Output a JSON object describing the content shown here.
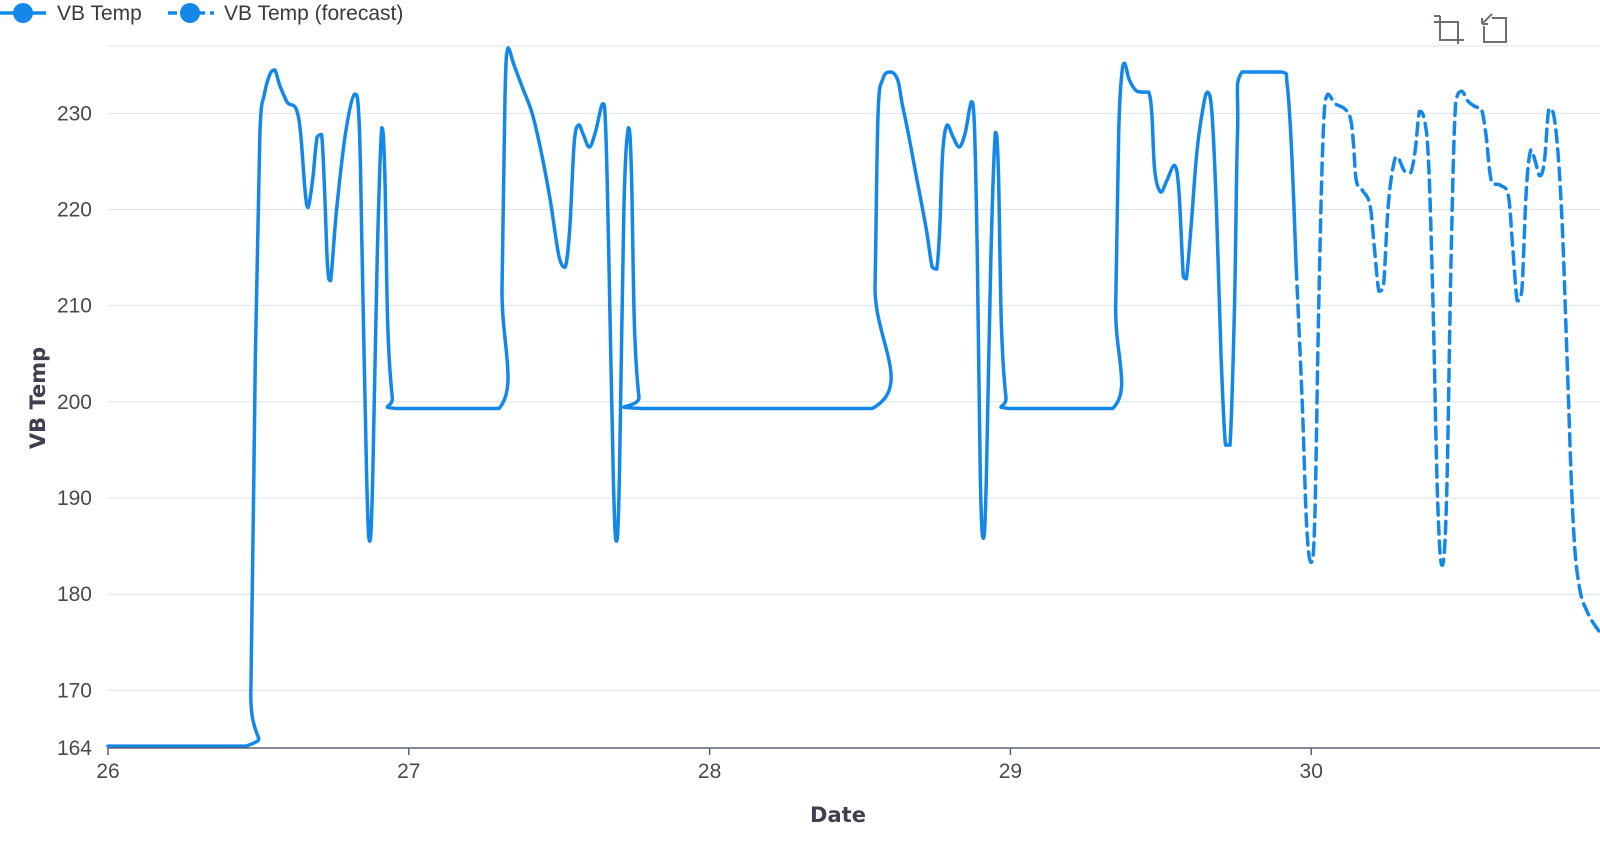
{
  "colors": {
    "series": "#1488e8",
    "grid": "#dde4ee",
    "axis": "#5b6475",
    "text": "#4a4a4a",
    "toolbar_icon": "#6b6f78"
  },
  "toolbar": {
    "zoom_icon": "zoom-select-icon",
    "restore_icon": "zoom-reset-icon"
  },
  "chart_data": {
    "type": "line",
    "xlabel": "Date",
    "ylabel": "VB Temp",
    "xlim": [
      26,
      30.96
    ],
    "ylim": [
      164,
      237
    ],
    "grid": true,
    "legend_position": "top-left",
    "x_ticks": [
      "26",
      "27",
      "28",
      "29",
      "30"
    ],
    "y_ticks": [
      "164",
      "170",
      "180",
      "190",
      "200",
      "210",
      "220",
      "230"
    ],
    "series": [
      {
        "name": "VB Temp",
        "style": "solid",
        "points": [
          [
            26.0,
            164.2
          ],
          [
            26.46,
            164.2
          ],
          [
            26.475,
            170
          ],
          [
            26.49,
            205
          ],
          [
            26.505,
            228
          ],
          [
            26.52,
            232
          ],
          [
            26.54,
            234.2
          ],
          [
            26.555,
            234.5
          ],
          [
            26.57,
            233
          ],
          [
            26.59,
            231.5
          ],
          [
            26.6,
            231
          ],
          [
            26.625,
            230.5
          ],
          [
            26.64,
            228
          ],
          [
            26.655,
            222
          ],
          [
            26.665,
            220.2
          ],
          [
            26.68,
            223
          ],
          [
            26.695,
            227.5
          ],
          [
            26.71,
            227.8
          ],
          [
            26.72,
            222
          ],
          [
            26.73,
            214
          ],
          [
            26.74,
            212.6
          ],
          [
            26.76,
            220
          ],
          [
            26.79,
            228
          ],
          [
            26.82,
            232
          ],
          [
            26.835,
            229
          ],
          [
            26.845,
            215
          ],
          [
            26.86,
            192
          ],
          [
            26.87,
            185.5
          ],
          [
            26.88,
            192
          ],
          [
            26.895,
            215
          ],
          [
            26.91,
            228.5
          ],
          [
            26.92,
            224
          ],
          [
            26.93,
            208
          ],
          [
            26.945,
            200.5
          ],
          [
            26.96,
            199.3
          ],
          [
            27.3,
            199.3
          ],
          [
            27.31,
            212
          ],
          [
            27.32,
            232
          ],
          [
            27.33,
            236.8
          ],
          [
            27.35,
            235
          ],
          [
            27.38,
            232.5
          ],
          [
            27.41,
            230
          ],
          [
            27.44,
            226
          ],
          [
            27.47,
            221
          ],
          [
            27.5,
            215
          ],
          [
            27.52,
            214
          ],
          [
            27.535,
            218
          ],
          [
            27.55,
            227
          ],
          [
            27.565,
            228.8
          ],
          [
            27.58,
            227.8
          ],
          [
            27.6,
            226.5
          ],
          [
            27.62,
            228
          ],
          [
            27.645,
            231
          ],
          [
            27.655,
            228
          ],
          [
            27.665,
            215
          ],
          [
            27.68,
            192
          ],
          [
            27.69,
            185.5
          ],
          [
            27.7,
            192
          ],
          [
            27.715,
            220
          ],
          [
            27.73,
            228.5
          ],
          [
            27.74,
            224
          ],
          [
            27.75,
            208
          ],
          [
            27.765,
            200.5
          ],
          [
            27.78,
            199.3
          ],
          [
            28.54,
            199.3
          ],
          [
            28.55,
            212
          ],
          [
            28.56,
            230
          ],
          [
            28.575,
            233.5
          ],
          [
            28.6,
            234.3
          ],
          [
            28.625,
            233.5
          ],
          [
            28.64,
            231
          ],
          [
            28.66,
            228
          ],
          [
            28.69,
            223
          ],
          [
            28.72,
            218
          ],
          [
            28.74,
            214
          ],
          [
            28.755,
            213.8
          ],
          [
            28.765,
            218
          ],
          [
            28.775,
            226
          ],
          [
            28.79,
            228.8
          ],
          [
            28.81,
            227.5
          ],
          [
            28.83,
            226.5
          ],
          [
            28.85,
            228
          ],
          [
            28.87,
            231.2
          ],
          [
            28.88,
            229
          ],
          [
            28.89,
            215
          ],
          [
            28.9,
            192
          ],
          [
            28.91,
            185.8
          ],
          [
            28.92,
            192
          ],
          [
            28.935,
            215
          ],
          [
            28.95,
            228
          ],
          [
            28.96,
            224
          ],
          [
            28.97,
            208
          ],
          [
            28.985,
            200.5
          ],
          [
            29.0,
            199.3
          ],
          [
            29.34,
            199.3
          ],
          [
            29.35,
            210
          ],
          [
            29.36,
            228
          ],
          [
            29.37,
            234
          ],
          [
            29.38,
            235.2
          ],
          [
            29.395,
            233.5
          ],
          [
            29.42,
            232.3
          ],
          [
            29.445,
            232.2
          ],
          [
            29.46,
            232.2
          ],
          [
            29.47,
            230
          ],
          [
            29.48,
            224
          ],
          [
            29.5,
            221.8
          ],
          [
            29.52,
            223
          ],
          [
            29.545,
            224.6
          ],
          [
            29.56,
            222
          ],
          [
            29.575,
            213
          ],
          [
            29.585,
            212.8
          ],
          [
            29.6,
            218
          ],
          [
            29.62,
            226
          ],
          [
            29.64,
            230.5
          ],
          [
            29.655,
            232.2
          ],
          [
            29.67,
            230
          ],
          [
            29.685,
            220
          ],
          [
            29.7,
            205
          ],
          [
            29.715,
            195.5
          ],
          [
            29.73,
            195.5
          ],
          [
            29.745,
            210
          ],
          [
            29.755,
            228
          ],
          [
            29.77,
            234.3
          ],
          [
            29.9,
            234.3
          ],
          [
            29.92,
            233
          ],
          [
            29.935,
            226
          ],
          [
            29.95,
            214
          ]
        ]
      },
      {
        "name": "VB Temp (forecast)",
        "style": "dashed",
        "points": [
          [
            29.95,
            214
          ],
          [
            29.97,
            200
          ],
          [
            29.985,
            187
          ],
          [
            30.0,
            183.3
          ],
          [
            30.012,
            188
          ],
          [
            30.025,
            210
          ],
          [
            30.04,
            228
          ],
          [
            30.055,
            232
          ],
          [
            30.08,
            231
          ],
          [
            30.11,
            230.5
          ],
          [
            30.13,
            229.5
          ],
          [
            30.14,
            227
          ],
          [
            30.15,
            223
          ],
          [
            30.17,
            222
          ],
          [
            30.195,
            220.5
          ],
          [
            30.21,
            216
          ],
          [
            30.225,
            211.5
          ],
          [
            30.24,
            212
          ],
          [
            30.255,
            220
          ],
          [
            30.27,
            224
          ],
          [
            30.285,
            225.5
          ],
          [
            30.31,
            224
          ],
          [
            30.33,
            223.8
          ],
          [
            30.345,
            226
          ],
          [
            30.36,
            230.2
          ],
          [
            30.375,
            229.5
          ],
          [
            30.39,
            225
          ],
          [
            30.405,
            210
          ],
          [
            30.42,
            190
          ],
          [
            30.435,
            183
          ],
          [
            30.45,
            190
          ],
          [
            30.465,
            215
          ],
          [
            30.48,
            231
          ],
          [
            30.5,
            232.3
          ],
          [
            30.52,
            231.3
          ],
          [
            30.545,
            230.7
          ],
          [
            30.565,
            230.5
          ],
          [
            30.58,
            228
          ],
          [
            30.6,
            222.8
          ],
          [
            30.63,
            222.5
          ],
          [
            30.655,
            221.5
          ],
          [
            30.67,
            216
          ],
          [
            30.685,
            210.5
          ],
          [
            30.7,
            211.5
          ],
          [
            30.715,
            222
          ],
          [
            30.73,
            226.2
          ],
          [
            30.745,
            225
          ],
          [
            30.76,
            223.5
          ],
          [
            30.775,
            225
          ],
          [
            30.79,
            230.5
          ],
          [
            30.805,
            230
          ],
          [
            30.82,
            226
          ],
          [
            30.835,
            218
          ],
          [
            30.85,
            205
          ],
          [
            30.87,
            188
          ],
          [
            30.89,
            181
          ],
          [
            30.92,
            178
          ],
          [
            30.96,
            176
          ]
        ]
      }
    ]
  }
}
